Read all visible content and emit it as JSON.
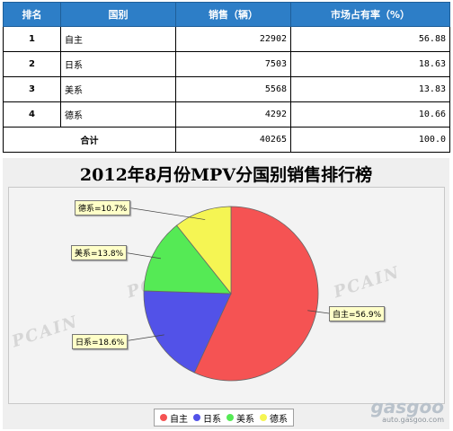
{
  "table": {
    "headers": [
      "排名",
      "国别",
      "销售（辆）",
      "市场占有率（%）"
    ],
    "rows": [
      {
        "rank": "1",
        "country": "自主",
        "sales": "22902",
        "share": "56.88"
      },
      {
        "rank": "2",
        "country": "日系",
        "sales": "7503",
        "share": "18.63"
      },
      {
        "rank": "3",
        "country": "美系",
        "sales": "5568",
        "share": "13.83"
      },
      {
        "rank": "4",
        "country": "德系",
        "sales": "4292",
        "share": "10.66"
      }
    ],
    "total": {
      "label": "合计",
      "sales": "40265",
      "share": "100.0"
    }
  },
  "chart_data": {
    "type": "pie",
    "title": "2012年8月份MPV分国别销售排行榜",
    "categories": [
      "自主",
      "日系",
      "美系",
      "德系"
    ],
    "values": [
      56.9,
      18.6,
      13.8,
      10.7
    ],
    "labels": [
      "自主=56.9%",
      "日系=18.6%",
      "美系=13.8%",
      "德系=10.7%"
    ],
    "colors": [
      "#f55353",
      "#5252e8",
      "#55ea55",
      "#f5f553"
    ],
    "legend": [
      "自主",
      "日系",
      "美系",
      "德系"
    ],
    "legend_position": "bottom-center"
  },
  "watermark": {
    "text": "PCAIN",
    "brand": "gasgoo",
    "url": "auto.gasgoo.com"
  }
}
